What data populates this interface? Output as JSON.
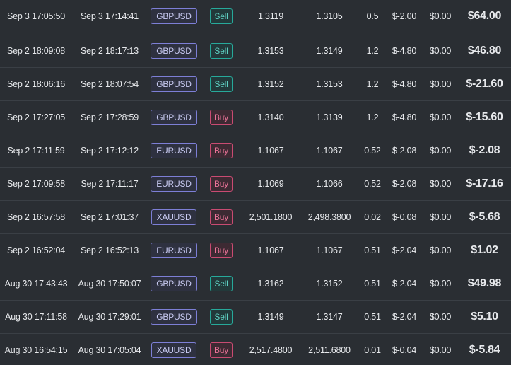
{
  "colors": {
    "background": "#2a2e33",
    "row_divider": "#3a3f45",
    "symbol_badge": "#7d7fd6",
    "sell_badge": "#27a99a",
    "buy_badge": "#c94b72",
    "text": "#e7e9ec"
  },
  "trades": [
    {
      "open_time": "Sep 3 17:05:50",
      "close_time": "Sep 3 17:14:41",
      "symbol": "GBPUSD",
      "side": "Sell",
      "open_price": "1.3119",
      "close_price": "1.3105",
      "volume": "0.5",
      "commission": "$-2.00",
      "swap": "$0.00",
      "pnl": "$64.00"
    },
    {
      "open_time": "Sep 2 18:09:08",
      "close_time": "Sep 2 18:17:13",
      "symbol": "GBPUSD",
      "side": "Sell",
      "open_price": "1.3153",
      "close_price": "1.3149",
      "volume": "1.2",
      "commission": "$-4.80",
      "swap": "$0.00",
      "pnl": "$46.80"
    },
    {
      "open_time": "Sep 2 18:06:16",
      "close_time": "Sep 2 18:07:54",
      "symbol": "GBPUSD",
      "side": "Sell",
      "open_price": "1.3152",
      "close_price": "1.3153",
      "volume": "1.2",
      "commission": "$-4.80",
      "swap": "$0.00",
      "pnl": "$-21.60"
    },
    {
      "open_time": "Sep 2 17:27:05",
      "close_time": "Sep 2 17:28:59",
      "symbol": "GBPUSD",
      "side": "Buy",
      "open_price": "1.3140",
      "close_price": "1.3139",
      "volume": "1.2",
      "commission": "$-4.80",
      "swap": "$0.00",
      "pnl": "$-15.60"
    },
    {
      "open_time": "Sep 2 17:11:59",
      "close_time": "Sep 2 17:12:12",
      "symbol": "EURUSD",
      "side": "Buy",
      "open_price": "1.1067",
      "close_price": "1.1067",
      "volume": "0.52",
      "commission": "$-2.08",
      "swap": "$0.00",
      "pnl": "$-2.08"
    },
    {
      "open_time": "Sep 2 17:09:58",
      "close_time": "Sep 2 17:11:17",
      "symbol": "EURUSD",
      "side": "Buy",
      "open_price": "1.1069",
      "close_price": "1.1066",
      "volume": "0.52",
      "commission": "$-2.08",
      "swap": "$0.00",
      "pnl": "$-17.16"
    },
    {
      "open_time": "Sep 2 16:57:58",
      "close_time": "Sep 2 17:01:37",
      "symbol": "XAUUSD",
      "side": "Buy",
      "open_price": "2,501.1800",
      "close_price": "2,498.3800",
      "volume": "0.02",
      "commission": "$-0.08",
      "swap": "$0.00",
      "pnl": "$-5.68"
    },
    {
      "open_time": "Sep 2 16:52:04",
      "close_time": "Sep 2 16:52:13",
      "symbol": "EURUSD",
      "side": "Buy",
      "open_price": "1.1067",
      "close_price": "1.1067",
      "volume": "0.51",
      "commission": "$-2.04",
      "swap": "$0.00",
      "pnl": "$1.02"
    },
    {
      "open_time": "Aug 30 17:43:43",
      "close_time": "Aug 30 17:50:07",
      "symbol": "GBPUSD",
      "side": "Sell",
      "open_price": "1.3162",
      "close_price": "1.3152",
      "volume": "0.51",
      "commission": "$-2.04",
      "swap": "$0.00",
      "pnl": "$49.98"
    },
    {
      "open_time": "Aug 30 17:11:58",
      "close_time": "Aug 30 17:29:01",
      "symbol": "GBPUSD",
      "side": "Sell",
      "open_price": "1.3149",
      "close_price": "1.3147",
      "volume": "0.51",
      "commission": "$-2.04",
      "swap": "$0.00",
      "pnl": "$5.10"
    },
    {
      "open_time": "Aug 30 16:54:15",
      "close_time": "Aug 30 17:05:04",
      "symbol": "XAUUSD",
      "side": "Buy",
      "open_price": "2,517.4800",
      "close_price": "2,511.6800",
      "volume": "0.01",
      "commission": "$-0.04",
      "swap": "$0.00",
      "pnl": "$-5.84"
    }
  ]
}
